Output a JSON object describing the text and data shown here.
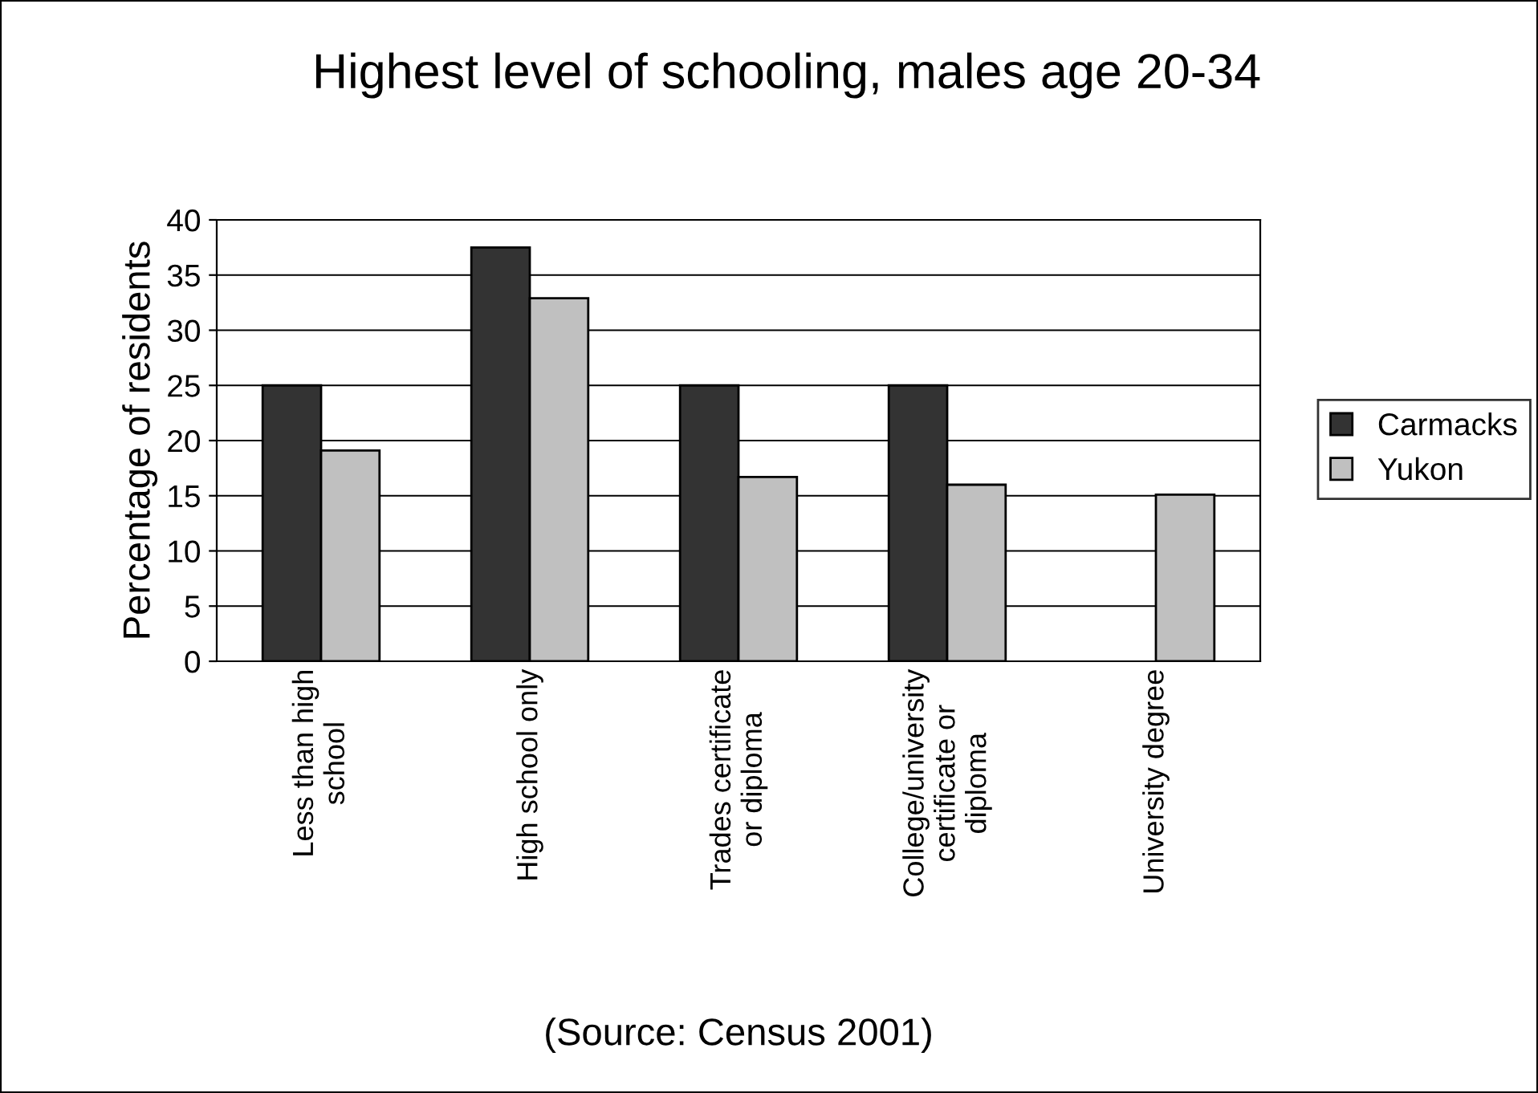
{
  "chart_data": {
    "type": "bar",
    "title": "Highest level of schooling, males age 20-34",
    "ylabel": "Percentage of residents",
    "categories": [
      "Less than high\nschool",
      "High school only",
      "Trades certificate\nor diploma",
      "College/university\ncertificate or\ndiploma",
      "University degree"
    ],
    "series": [
      {
        "name": "Carmacks",
        "color": "#333333",
        "values": [
          25,
          37.5,
          25,
          25,
          null
        ]
      },
      {
        "name": "Yukon",
        "color": "#c0c0c0",
        "values": [
          19.1,
          32.9,
          16.7,
          16,
          15.1
        ]
      }
    ],
    "ylim": [
      0,
      40
    ],
    "yticks": [
      0,
      5,
      10,
      15,
      20,
      25,
      30,
      35,
      40
    ],
    "grid": "y",
    "legend": "right",
    "annotations": [
      "(Source: Census 2001)"
    ]
  }
}
